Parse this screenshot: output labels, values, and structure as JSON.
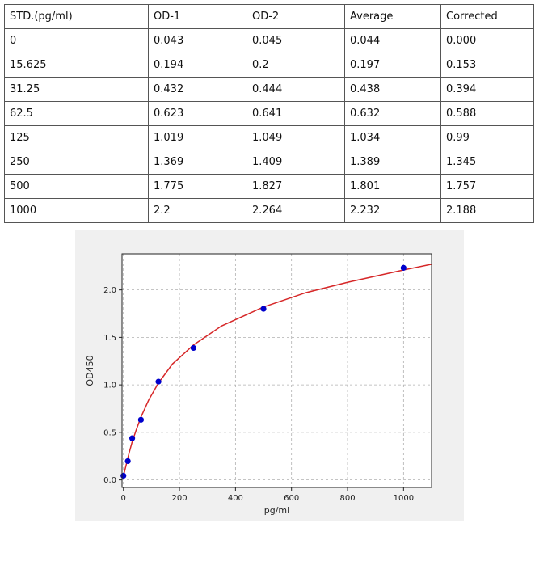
{
  "table": {
    "headers": [
      "STD.(pg/ml)",
      "OD-1",
      "OD-2",
      "Average",
      "Corrected"
    ],
    "rows": [
      [
        "0",
        "0.043",
        "0.045",
        "0.044",
        "0.000"
      ],
      [
        "15.625",
        "0.194",
        "0.2",
        "0.197",
        "0.153"
      ],
      [
        "31.25",
        "0.432",
        "0.444",
        "0.438",
        "0.394"
      ],
      [
        "62.5",
        "0.623",
        "0.641",
        "0.632",
        "0.588"
      ],
      [
        "125",
        "1.019",
        "1.049",
        "1.034",
        "0.99"
      ],
      [
        "250",
        "1.369",
        "1.409",
        "1.389",
        "1.345"
      ],
      [
        "500",
        "1.775",
        "1.827",
        "1.801",
        "1.757"
      ],
      [
        "1000",
        "2.2",
        "2.264",
        "2.232",
        "2.188"
      ]
    ]
  },
  "chart_data": {
    "type": "scatter",
    "title": "",
    "xlabel": "pg/ml",
    "ylabel": "OD450",
    "xlim": [
      -5,
      1100
    ],
    "ylim": [
      -0.08,
      2.38
    ],
    "xticks": [
      0,
      200,
      400,
      600,
      800,
      1000
    ],
    "yticks": [
      0.0,
      0.5,
      1.0,
      1.5,
      2.0
    ],
    "xtick_labels": [
      "0",
      "200",
      "400",
      "600",
      "800",
      "1000"
    ],
    "ytick_labels": [
      "0.0",
      "0.5",
      "1.0",
      "1.5",
      "2.0"
    ],
    "grid": true,
    "series": [
      {
        "values": [
          {
            "x": 0,
            "y": 0.044
          },
          {
            "x": 15.625,
            "y": 0.197
          },
          {
            "x": 31.25,
            "y": 0.438
          },
          {
            "x": 62.5,
            "y": 0.632
          },
          {
            "x": 125,
            "y": 1.034
          },
          {
            "x": 250,
            "y": 1.389
          },
          {
            "x": 500,
            "y": 1.801
          },
          {
            "x": 1000,
            "y": 2.232
          }
        ],
        "color": "#0000cc"
      }
    ],
    "fit_curve": {
      "color": "#d62728",
      "x": [
        0,
        5,
        10,
        20,
        31.25,
        45,
        62.5,
        90,
        125,
        175,
        250,
        350,
        500,
        650,
        800,
        1000,
        1100
      ],
      "y": [
        0.04,
        0.1,
        0.16,
        0.28,
        0.4,
        0.52,
        0.66,
        0.84,
        1.02,
        1.22,
        1.42,
        1.62,
        1.82,
        1.97,
        2.08,
        2.21,
        2.27
      ]
    }
  }
}
